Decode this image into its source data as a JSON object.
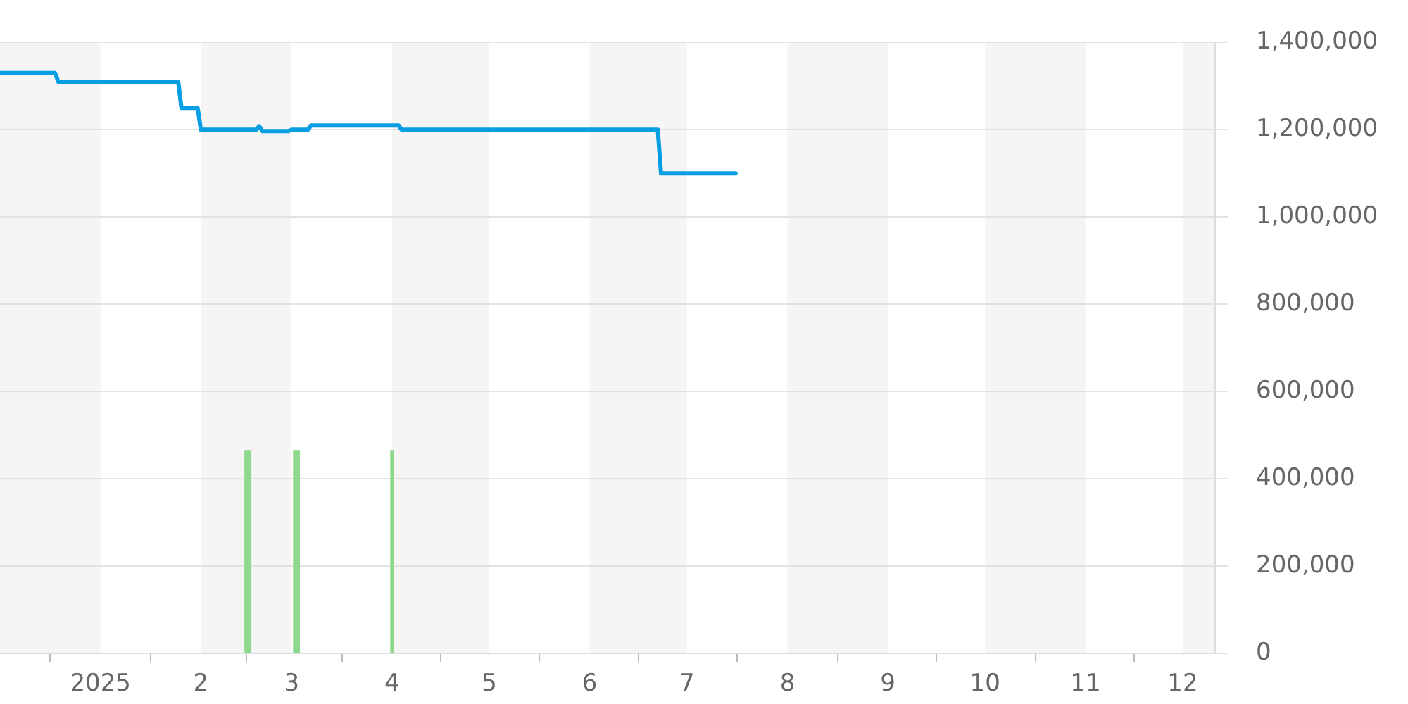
{
  "chart_data": {
    "type": "line",
    "xlim": [
      "2024-12-01",
      "2025-12-11"
    ],
    "xticks": [
      {
        "value": "2025-01-01",
        "label": "2025"
      },
      {
        "value": "2025-02-01",
        "label": "2"
      },
      {
        "value": "2025-03-01",
        "label": "3"
      },
      {
        "value": "2025-04-01",
        "label": "4"
      },
      {
        "value": "2025-05-01",
        "label": "5"
      },
      {
        "value": "2025-06-01",
        "label": "6"
      },
      {
        "value": "2025-07-01",
        "label": "7"
      },
      {
        "value": "2025-08-01",
        "label": "8"
      },
      {
        "value": "2025-09-01",
        "label": "9"
      },
      {
        "value": "2025-10-01",
        "label": "10"
      },
      {
        "value": "2025-11-01",
        "label": "11"
      },
      {
        "value": "2025-12-01",
        "label": "12"
      }
    ],
    "ylim": [
      0,
      1400000
    ],
    "yticks": [
      0,
      {
        "value": 200000,
        "label": "200,000"
      },
      {
        "value": 400000,
        "label": "400,000"
      },
      {
        "value": 600000,
        "label": "600,000"
      },
      {
        "value": 800000,
        "label": "800,000"
      },
      {
        "value": 1000000,
        "label": "1,000,000"
      },
      {
        "value": 1200000,
        "label": "1,200,000"
      },
      {
        "value": 1400000,
        "label": "1,400,000"
      }
    ],
    "grid": "y",
    "bands": [
      {
        "axis": "x",
        "from": "2024-12-01",
        "to": "2025-01-01",
        "color": "#f5f5f5"
      },
      {
        "axis": "x",
        "from": "2025-02-01",
        "to": "2025-03-01",
        "color": "#f5f5f5"
      },
      {
        "axis": "x",
        "from": "2025-04-01",
        "to": "2025-05-01",
        "color": "#f5f5f5"
      },
      {
        "axis": "x",
        "from": "2025-06-01",
        "to": "2025-07-01",
        "color": "#f5f5f5"
      },
      {
        "axis": "x",
        "from": "2025-08-01",
        "to": "2025-09-01",
        "color": "#f5f5f5"
      },
      {
        "axis": "x",
        "from": "2025-10-01",
        "to": "2025-11-01",
        "color": "#f5f5f5"
      },
      {
        "axis": "x",
        "from": "2025-12-01",
        "to": "2025-12-11",
        "color": "#f5f5f5"
      }
    ],
    "series": [
      {
        "color": "#069fe3",
        "x": [
          "2024-12-01",
          "2024-12-18",
          "2024-12-19",
          "2025-01-25",
          "2025-01-26",
          "2025-01-31",
          "2025-02-01",
          "2025-02-18",
          "2025-02-19",
          "2025-02-20",
          "2025-02-28",
          "2025-03-01",
          "2025-03-06",
          "2025-03-07",
          "2025-04-03",
          "2025-04-04",
          "2025-06-22",
          "2025-06-23",
          "2025-07-16"
        ],
        "values": [
          1330000,
          1330000,
          1310000,
          1310000,
          1250000,
          1250000,
          1200000,
          1200000,
          1208000,
          1197000,
          1197000,
          1200000,
          1200000,
          1210000,
          1210000,
          1200000,
          1200000,
          1100000,
          1100000
        ]
      },
      {
        "type": "bar",
        "color": "#8fd98f",
        "x": [
          "2025-02-15",
          "2025-02-16",
          "2025-03-02",
          "2025-03-03",
          "2025-04-01"
        ],
        "values": [
          465000,
          465000,
          465000,
          465000,
          465000
        ]
      }
    ]
  }
}
